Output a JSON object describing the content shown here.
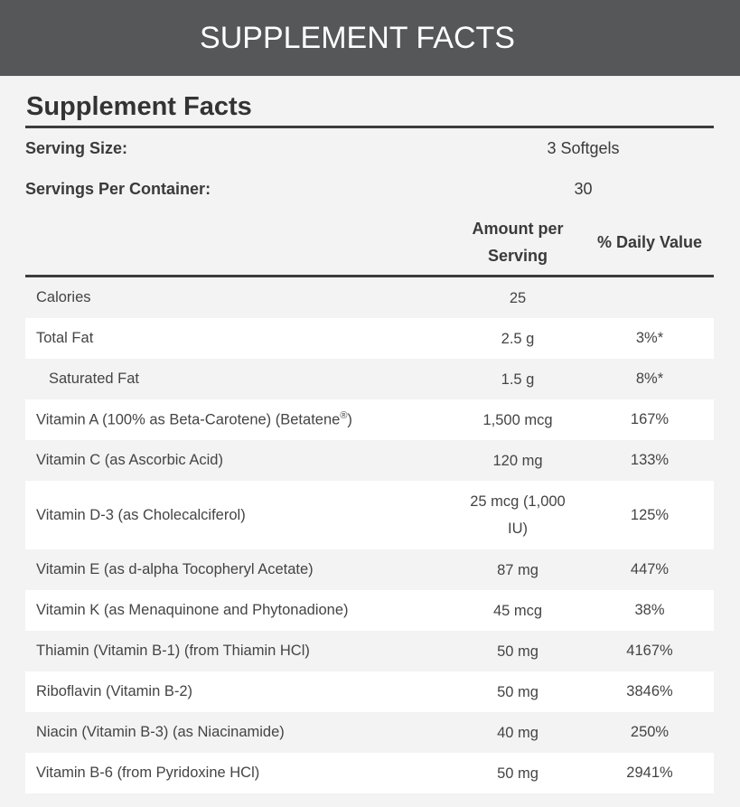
{
  "banner": {
    "title": "SUPPLEMENT FACTS"
  },
  "heading": "Supplement Facts",
  "serving_size": {
    "label": "Serving Size:",
    "value": "3 Softgels"
  },
  "servings_per_container": {
    "label": "Servings Per Container:",
    "value": "30"
  },
  "columns": {
    "amount": "Amount per Serving",
    "daily_value": "% Daily Value"
  },
  "rows": [
    {
      "name": "Calories",
      "amount": "25",
      "dv": ""
    },
    {
      "name": "Total Fat",
      "amount": "2.5 g",
      "dv": "3%*"
    },
    {
      "name": "Saturated Fat",
      "amount": "1.5 g",
      "dv": "8%*"
    },
    {
      "name": "Vitamin A (100% as Beta-Carotene) (Betatene",
      "sup": "®",
      "name_end": ")",
      "amount": "1,500 mcg",
      "dv": "167%"
    },
    {
      "name": "Vitamin C (as Ascorbic Acid)",
      "amount": "120 mg",
      "dv": "133%"
    },
    {
      "name": "Vitamin D-3 (as Cholecalciferol)",
      "amount": "25 mcg (1,000 IU)",
      "dv": "125%"
    },
    {
      "name": "Vitamin E (as d-alpha Tocopheryl Acetate)",
      "amount": "87 mg",
      "dv": "447%"
    },
    {
      "name": "Vitamin K (as Menaquinone and Phytonadione)",
      "amount": "45 mcg",
      "dv": "38%"
    },
    {
      "name": "Thiamin (Vitamin B-1) (from Thiamin HCl)",
      "amount": "50 mg",
      "dv": "4167%"
    },
    {
      "name": "Riboflavin (Vitamin B-2)",
      "amount": "50 mg",
      "dv": "3846%"
    },
    {
      "name": "Niacin (Vitamin B-3) (as Niacinamide)",
      "amount": "40 mg",
      "dv": "250%"
    },
    {
      "name": "Vitamin B-6 (from Pyridoxine HCl)",
      "amount": "50 mg",
      "dv": "2941%"
    }
  ]
}
